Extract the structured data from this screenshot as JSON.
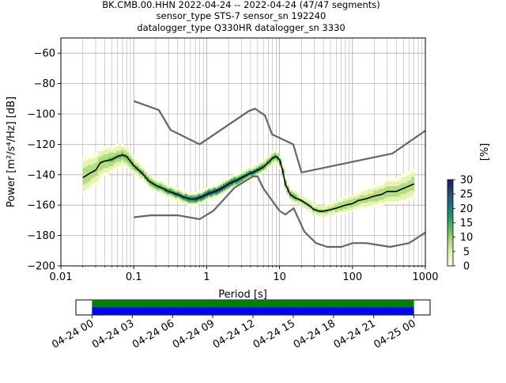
{
  "title": {
    "line1": "BK.CMB.00.HHN   2022-04-24 -- 2022-04-24  (47/47 segments)",
    "line2": "sensor_type STS-7 sensor_sn 192240",
    "line3": "datalogger_type Q330HR datalogger_sn 3330"
  },
  "chart_data": {
    "type": "heatmap",
    "xlabel": "Period [s]",
    "xscale": "log",
    "xlim": [
      0.01,
      1000
    ],
    "x_ticks": [
      0.01,
      0.1,
      1,
      10,
      100,
      1000
    ],
    "x_tick_labels": [
      "0.01",
      "0.1",
      "1",
      "10",
      "100",
      "1000"
    ],
    "ylabel": "Power [m²/s⁴/Hz] [dB]",
    "ylim": [
      -200,
      -50
    ],
    "y_ticks": [
      -200,
      -180,
      -160,
      -140,
      -120,
      -100,
      -80,
      -60
    ],
    "y_tick_labels": [
      "−200",
      "−180",
      "−160",
      "−140",
      "−120",
      "−100",
      "−80",
      "−60"
    ],
    "grid": true,
    "colorbar": {
      "label": "[%]",
      "range": [
        0,
        30
      ],
      "ticks": [
        0,
        5,
        10,
        15,
        20,
        25,
        30
      ],
      "tick_labels": [
        "0",
        "5",
        "10",
        "15",
        "20",
        "25",
        "30"
      ],
      "colormap": [
        "#ffffe0",
        "#e4f2b2",
        "#aedc7a",
        "#56c05a",
        "#1e9a6e",
        "#1f6f7e",
        "#27457a",
        "#2a1a5a"
      ]
    },
    "mode_curve": {
      "name": "mode",
      "color": "#000000",
      "period": [
        0.02,
        0.025,
        0.03,
        0.035,
        0.04,
        0.05,
        0.06,
        0.07,
        0.08,
        0.1,
        0.13,
        0.16,
        0.2,
        0.25,
        0.3,
        0.4,
        0.5,
        0.6,
        0.7,
        0.8,
        1.0,
        1.3,
        1.6,
        2.0,
        2.5,
        3.0,
        4.0,
        5.0,
        6.0,
        7.0,
        8.0,
        9.0,
        10,
        11,
        12,
        14,
        16,
        20,
        25,
        30,
        35,
        40,
        50,
        60,
        80,
        100,
        120,
        150,
        200,
        250,
        300,
        400,
        500,
        700
      ],
      "power": [
        -142,
        -139,
        -137,
        -132,
        -131,
        -130,
        -128,
        -127,
        -128,
        -134,
        -139,
        -144,
        -147,
        -149,
        -151,
        -153,
        -155,
        -156,
        -156,
        -155,
        -153,
        -151,
        -149,
        -146,
        -144,
        -142,
        -139,
        -137,
        -135,
        -132,
        -129,
        -128,
        -130,
        -137,
        -146,
        -153,
        -155,
        -157,
        -160,
        -163,
        -164,
        -164,
        -163,
        -162,
        -160,
        -159,
        -157,
        -156,
        -154,
        -153,
        -151,
        -151,
        -149,
        -146
      ]
    },
    "noise_models": [
      {
        "name": "high-noise-model",
        "color": "#666666",
        "period": [
          0.1,
          0.22,
          0.32,
          0.8,
          3.8,
          4.6,
          6.3,
          7.9,
          15.4,
          20,
          354,
          1000
        ],
        "power": [
          -91.5,
          -97.4,
          -110.5,
          -120,
          -98,
          -96.5,
          -101,
          -113.5,
          -120,
          -138.5,
          -126,
          -111
        ]
      },
      {
        "name": "low-noise-model",
        "color": "#666666",
        "period": [
          0.1,
          0.17,
          0.4,
          0.8,
          1.24,
          2.4,
          4.3,
          5.0,
          6.0,
          10,
          12,
          15.6,
          21.9,
          31.6,
          45,
          70,
          101,
          154,
          328,
          600,
          1000
        ],
        "power": [
          -168,
          -166.7,
          -166.7,
          -169.2,
          -163.7,
          -148.6,
          -141.1,
          -141.1,
          -149,
          -163.8,
          -166.2,
          -162.1,
          -177.5,
          -185,
          -187.5,
          -187.5,
          -185,
          -185,
          -187.5,
          -185,
          -178
        ]
      }
    ]
  },
  "timeline": {
    "ticks": [
      0,
      3,
      6,
      9,
      12,
      15,
      18,
      21,
      24
    ],
    "tick_labels": [
      "04-24 00",
      "04-24 03",
      "04-24 06",
      "04-24 09",
      "04-24 12",
      "04-24 15",
      "04-24 18",
      "04-24 21",
      "04-25 00"
    ],
    "range_hours": [
      -1.2,
      25.2
    ],
    "bars": [
      {
        "name": "data-coverage",
        "color": "#008000",
        "start": 0,
        "end": 24
      },
      {
        "name": "gaps-overlaps",
        "color": "#0000ff",
        "start": 0,
        "end": 24
      }
    ]
  }
}
